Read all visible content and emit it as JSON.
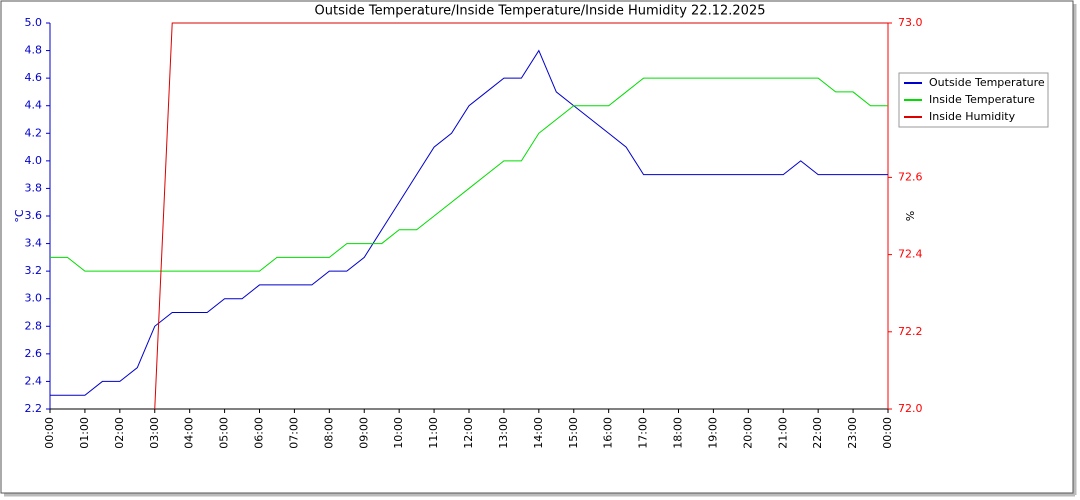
{
  "chart_data": {
    "type": "line",
    "title": "Outside Temperature/Inside Temperature/Inside Humidity  22.12.2025",
    "ylabel": "°C",
    "y2label": "%",
    "x": [
      0,
      0.5,
      1,
      1.5,
      2,
      2.5,
      3,
      3.5,
      4,
      4.5,
      5,
      5.5,
      6,
      6.5,
      7,
      7.5,
      8,
      8.5,
      9,
      9.5,
      10,
      10.5,
      11,
      11.5,
      12,
      12.5,
      13,
      13.5,
      14,
      14.5,
      15,
      15.5,
      16,
      16.5,
      17,
      17.5,
      18,
      18.5,
      19,
      19.5,
      20,
      20.5,
      21,
      21.5,
      22,
      22.5,
      23,
      23.5,
      24
    ],
    "xlim": [
      0,
      24
    ],
    "xticks": [
      {
        "value": 0,
        "label": "00:00"
      },
      {
        "value": 1,
        "label": "01:00"
      },
      {
        "value": 2,
        "label": "02:00"
      },
      {
        "value": 3,
        "label": "03:00"
      },
      {
        "value": 4,
        "label": "04:00"
      },
      {
        "value": 5,
        "label": "05:00"
      },
      {
        "value": 6,
        "label": "06:00"
      },
      {
        "value": 7,
        "label": "07:00"
      },
      {
        "value": 8,
        "label": "08:00"
      },
      {
        "value": 9,
        "label": "09:00"
      },
      {
        "value": 10,
        "label": "10:00"
      },
      {
        "value": 11,
        "label": "11:00"
      },
      {
        "value": 12,
        "label": "12:00"
      },
      {
        "value": 13,
        "label": "13:00"
      },
      {
        "value": 14,
        "label": "14:00"
      },
      {
        "value": 15,
        "label": "15:00"
      },
      {
        "value": 16,
        "label": "16:00"
      },
      {
        "value": 17,
        "label": "17:00"
      },
      {
        "value": 18,
        "label": "18:00"
      },
      {
        "value": 19,
        "label": "19:00"
      },
      {
        "value": 20,
        "label": "20:00"
      },
      {
        "value": 21,
        "label": "21:00"
      },
      {
        "value": 22,
        "label": "22:00"
      },
      {
        "value": 23,
        "label": "23:00"
      },
      {
        "value": 24,
        "label": "00:00"
      }
    ],
    "ylim": [
      2.2,
      5.0
    ],
    "yticks": [
      {
        "value": 2.2,
        "label": "2.2"
      },
      {
        "value": 2.4,
        "label": "2.4"
      },
      {
        "value": 2.6,
        "label": "2.6"
      },
      {
        "value": 2.8,
        "label": "2.8"
      },
      {
        "value": 3,
        "label": "3.0"
      },
      {
        "value": 3.2,
        "label": "3.2"
      },
      {
        "value": 3.4,
        "label": "3.4"
      },
      {
        "value": 3.6,
        "label": "3.6"
      },
      {
        "value": 3.8,
        "label": "3.8"
      },
      {
        "value": 4,
        "label": "4.0"
      },
      {
        "value": 4.2,
        "label": "4.2"
      },
      {
        "value": 4.4,
        "label": "4.4"
      },
      {
        "value": 4.6,
        "label": "4.6"
      },
      {
        "value": 4.8,
        "label": "4.8"
      },
      {
        "value": 5,
        "label": "5.0"
      }
    ],
    "y2lim": [
      72.0,
      73.0
    ],
    "y2ticks": [
      {
        "value": 72,
        "label": "72.0"
      },
      72.2,
      72.4,
      72.6,
      {
        "value": 73,
        "label": "73.0"
      }
    ],
    "y2color": "#ff0000",
    "legend": "right",
    "series": [
      {
        "name": "Outside Temperature",
        "color": "#0000cc",
        "values": [
          2.3,
          2.3,
          2.3,
          2.4,
          2.4,
          2.5,
          2.8,
          2.9,
          2.9,
          2.9,
          3.0,
          3.0,
          3.1,
          3.1,
          3.1,
          3.1,
          3.2,
          3.2,
          3.3,
          3.5,
          3.7,
          3.9,
          4.1,
          4.2,
          4.4,
          4.5,
          4.6,
          4.6,
          4.8,
          4.5,
          4.4,
          4.3,
          4.2,
          4.1,
          3.9,
          3.9,
          3.9,
          3.9,
          3.9,
          3.9,
          3.9,
          3.9,
          3.9,
          4.0,
          3.9,
          3.9,
          3.9,
          3.9,
          3.9
        ]
      },
      {
        "name": "Inside Temperature",
        "color": "#00dd00",
        "values": [
          3.3,
          3.3,
          3.2,
          3.2,
          3.2,
          3.2,
          3.2,
          3.2,
          3.2,
          3.2,
          3.2,
          3.2,
          3.2,
          3.3,
          3.3,
          3.3,
          3.3,
          3.4,
          3.4,
          3.4,
          3.5,
          3.5,
          3.6,
          3.7,
          3.8,
          3.9,
          4.0,
          4.0,
          4.2,
          4.3,
          4.4,
          4.4,
          4.4,
          4.5,
          4.6,
          4.6,
          4.6,
          4.6,
          4.6,
          4.6,
          4.6,
          4.6,
          4.6,
          4.6,
          4.6,
          4.5,
          4.5,
          4.4,
          4.4
        ]
      },
      {
        "name": "Inside Humidity",
        "color": "#dd0000",
        "axis": "y2",
        "values": [
          null,
          null,
          null,
          null,
          null,
          null,
          72.0,
          73.0,
          73.0,
          73.0,
          73.0,
          73.0,
          73.0,
          73.0,
          73.0,
          73.0,
          73.0,
          73.0,
          73.0,
          73.0,
          73.0,
          73.0,
          73.0,
          73.0,
          73.0,
          73.0,
          73.0,
          73.0,
          73.0,
          73.0,
          73.0,
          73.0,
          73.0,
          73.0,
          73.0,
          73.0,
          73.0,
          73.0,
          73.0,
          73.0,
          73.0,
          73.0,
          73.0,
          73.0,
          73.0,
          73.0,
          73.0,
          73.0,
          73.0
        ]
      }
    ]
  }
}
